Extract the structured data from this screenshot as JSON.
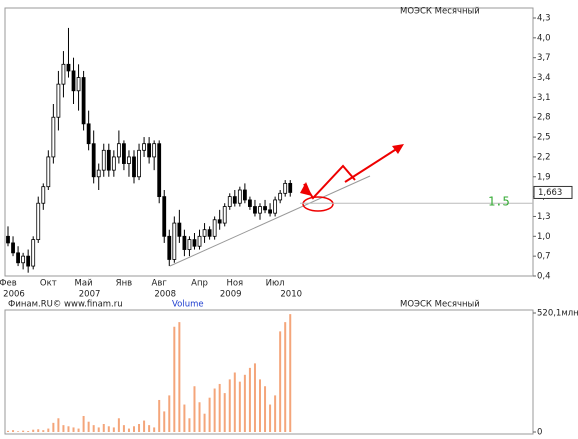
{
  "chart_data": {
    "type": "candlestick",
    "title": "МОЭСК Месячный",
    "categories": [
      "Фев",
      null,
      null,
      null,
      null,
      null,
      null,
      null,
      "Окт",
      null,
      null,
      null,
      null,
      null,
      null,
      "Май",
      null,
      null,
      null,
      null,
      null,
      null,
      null,
      "Янв",
      null,
      null,
      null,
      null,
      null,
      null,
      "Авг",
      null,
      null,
      null,
      null,
      null,
      null,
      null,
      "Апр",
      null,
      null,
      null,
      null,
      null,
      null,
      "Ноя",
      null,
      null,
      null,
      null,
      null,
      null,
      null,
      "Июл",
      null,
      null,
      null
    ],
    "years": [
      "2006",
      null,
      null,
      null,
      null,
      null,
      null,
      null,
      null,
      null,
      null,
      null,
      null,
      null,
      null,
      "2007",
      null,
      null,
      null,
      null,
      null,
      null,
      null,
      null,
      null,
      null,
      null,
      null,
      null,
      null,
      "2008",
      null,
      null,
      null,
      null,
      null,
      null,
      null,
      null,
      null,
      null,
      null,
      null,
      "2009",
      null,
      null,
      null,
      null,
      null,
      null,
      null,
      null,
      null,
      null,
      null,
      "2010",
      null,
      null,
      null,
      null,
      null
    ],
    "open": [
      1.0,
      0.9,
      0.75,
      0.6,
      0.7,
      0.55,
      0.95,
      1.5,
      1.75,
      2.2,
      2.8,
      3.3,
      3.6,
      3.5,
      3.2,
      3.4,
      2.7,
      2.4,
      1.9,
      2.0,
      2.3,
      2.0,
      2.2,
      2.4,
      2.1,
      2.2,
      1.9,
      2.3,
      2.4,
      2.2,
      2.4,
      1.6,
      1.0,
      0.65,
      1.2,
      1.0,
      0.8,
      0.95,
      0.85,
      1.0,
      1.1,
      1.0,
      1.25,
      1.2,
      1.45,
      1.6,
      1.5,
      1.7,
      1.55,
      1.45,
      1.35,
      1.45,
      1.4,
      1.35,
      1.55,
      1.65,
      1.8
    ],
    "high": [
      1.15,
      1.0,
      0.85,
      0.75,
      0.8,
      1.0,
      1.6,
      1.8,
      2.3,
      3.0,
      3.5,
      3.8,
      4.15,
      3.7,
      3.6,
      3.5,
      2.9,
      2.6,
      2.1,
      2.4,
      2.4,
      2.3,
      2.6,
      2.45,
      2.3,
      2.3,
      2.4,
      2.5,
      2.5,
      2.45,
      2.45,
      1.7,
      1.1,
      1.3,
      1.4,
      1.1,
      1.0,
      1.05,
      1.1,
      1.2,
      1.15,
      1.3,
      1.4,
      1.5,
      1.65,
      1.7,
      1.75,
      1.8,
      1.6,
      1.55,
      1.5,
      1.55,
      1.5,
      1.6,
      1.7,
      1.85,
      1.85
    ],
    "low": [
      0.85,
      0.7,
      0.55,
      0.5,
      0.45,
      0.5,
      0.9,
      1.4,
      1.7,
      2.1,
      2.6,
      3.1,
      3.4,
      3.0,
      2.9,
      2.6,
      2.3,
      1.8,
      1.7,
      1.9,
      1.9,
      1.9,
      2.1,
      2.0,
      1.9,
      1.8,
      1.85,
      2.2,
      2.1,
      2.0,
      1.5,
      0.9,
      0.55,
      0.6,
      0.9,
      0.7,
      0.7,
      0.8,
      0.8,
      0.9,
      0.95,
      0.95,
      1.1,
      1.15,
      1.4,
      1.45,
      1.45,
      1.5,
      1.4,
      1.3,
      1.25,
      1.35,
      1.3,
      1.3,
      1.5,
      1.6,
      1.6
    ],
    "close": [
      0.9,
      0.75,
      0.6,
      0.7,
      0.55,
      0.95,
      1.5,
      1.75,
      2.2,
      2.8,
      3.3,
      3.6,
      3.5,
      3.2,
      3.4,
      2.7,
      2.4,
      1.9,
      2.0,
      2.3,
      2.0,
      2.2,
      2.4,
      2.1,
      2.2,
      1.9,
      2.3,
      2.4,
      2.2,
      2.4,
      1.6,
      1.0,
      0.65,
      1.2,
      1.0,
      0.8,
      0.95,
      0.85,
      1.0,
      1.1,
      1.0,
      1.25,
      1.2,
      1.45,
      1.6,
      1.5,
      1.7,
      1.55,
      1.45,
      1.35,
      1.45,
      1.4,
      1.35,
      1.55,
      1.65,
      1.8,
      1.663
    ],
    "ylim": [
      0.4,
      4.3
    ],
    "yticks": [
      {
        "value": 0.4,
        "label": "0,4"
      },
      {
        "value": 0.7,
        "label": "0,7"
      },
      {
        "value": 1.0,
        "label": "1,0"
      },
      {
        "value": 1.3,
        "label": "1,3"
      },
      {
        "value": 1.6,
        "label": "1,6"
      },
      {
        "value": 1.9,
        "label": "1,9"
      },
      {
        "value": 2.2,
        "label": "2,2"
      },
      {
        "value": 2.5,
        "label": "2,5"
      },
      {
        "value": 2.8,
        "label": "2,8"
      },
      {
        "value": 3.1,
        "label": "3,1"
      },
      {
        "value": 3.4,
        "label": "3,4"
      },
      {
        "value": 3.7,
        "label": "3,7"
      },
      {
        "value": 4.0,
        "label": "4,0"
      },
      {
        "value": 4.3,
        "label": "4,3"
      }
    ],
    "last_price": {
      "value": 1.663,
      "label": "1,663"
    },
    "reference_line": 1.5,
    "up_color": "#ffffff",
    "down_color": "#000000",
    "volume": {
      "source": "Финам.RU© www.finam.ru",
      "name": "Volume",
      "title": "МОЭСК Месячный",
      "color": "#f4a57a",
      "values": [
        5,
        8,
        3,
        6,
        4,
        10,
        12,
        8,
        15,
        40,
        60,
        30,
        25,
        20,
        15,
        70,
        45,
        30,
        20,
        35,
        25,
        20,
        60,
        30,
        15,
        25,
        35,
        50,
        30,
        20,
        140,
        90,
        160,
        460,
        480,
        120,
        60,
        200,
        130,
        80,
        150,
        190,
        210,
        170,
        230,
        260,
        220,
        250,
        280,
        300,
        230,
        200,
        120,
        160,
        440,
        480,
        515
      ],
      "ylim": [
        0,
        520.1
      ],
      "yticks": [
        {
          "value": 520.1,
          "label": "520,1млн"
        },
        0
      ]
    }
  }
}
